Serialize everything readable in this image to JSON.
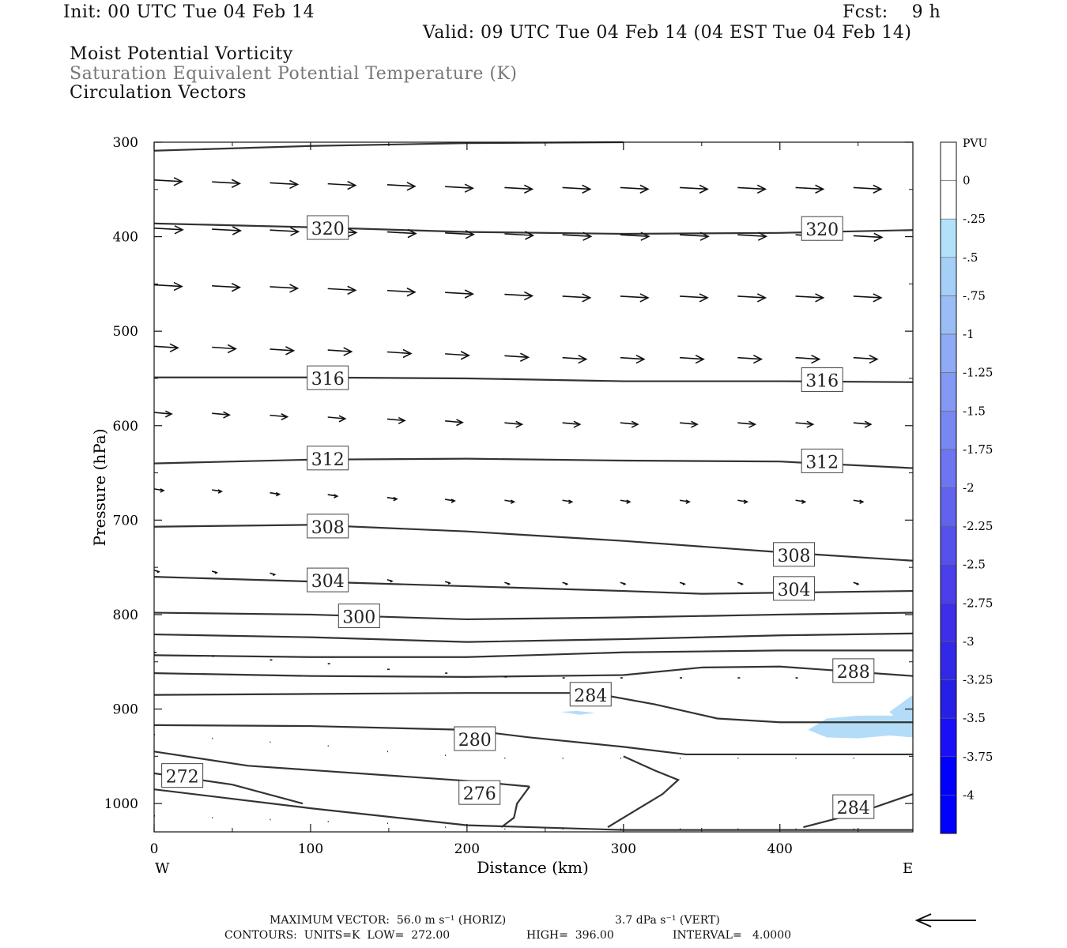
{
  "header": {
    "init": "Init: 00 UTC Tue 04 Feb 14",
    "fcst": "Fcst:    9 h",
    "valid": "Valid: 09 UTC Tue 04 Feb 14 (04 EST Tue 04 Feb 14)",
    "field1": "Moist Potential Vorticity",
    "field2": "Saturation Equivalent Potential Temperature (K)",
    "field3": "Circulation Vectors"
  },
  "footer": {
    "line1a": "MAXIMUM VECTOR:  56.0 m s⁻¹ (HORIZ)",
    "line1b": "3.7 dPa s⁻¹ (VERT)",
    "line2a": "CONTOURS:  UNITS=K  LOW=  272.00",
    "line2b": "HIGH=  396.00",
    "line2c": "INTERVAL=   4.0000"
  },
  "colors": {
    "contour": "#333333",
    "vector": "#111111",
    "pvu_fill": "#b3dcf8",
    "colorbar": [
      "#ffffff",
      "#ffffff",
      "#b3e1fa",
      "#a6cff8",
      "#9bbdf6",
      "#8fabf5",
      "#8499f3",
      "#7887f2",
      "#6d75f0",
      "#6163ee",
      "#5551ec",
      "#4a3fea",
      "#3e2de9",
      "#3228e8",
      "#2620e6",
      "#1a10f8",
      "#0000ff",
      "#0000ff"
    ]
  },
  "colorbar": {
    "title": "PVU",
    "labels": [
      "0",
      "-.25",
      "-.5",
      "-.75",
      "-1",
      "-1.25",
      "-1.5",
      "-1.75",
      "-2",
      "-2.25",
      "-2.5",
      "-2.75",
      "-3",
      "-3.25",
      "-3.5",
      "-3.75",
      "-4"
    ]
  },
  "chart_data": {
    "type": "contour",
    "xlabel": "Distance (km)",
    "ylabel": "Pressure (hPa)",
    "xlim": [
      0,
      485
    ],
    "ylim": [
      1030,
      300
    ],
    "x_ticks": [
      0,
      100,
      200,
      300,
      400
    ],
    "y_ticks": [
      300,
      400,
      500,
      600,
      700,
      800,
      900,
      1000
    ],
    "x_end_labels": {
      "left": "W",
      "right": "E"
    },
    "contours": [
      {
        "level": "320",
        "points": [
          [
            0,
            386
          ],
          [
            100,
            390
          ],
          [
            200,
            395
          ],
          [
            300,
            397
          ],
          [
            400,
            396
          ],
          [
            485,
            393
          ]
        ],
        "labels": [
          [
            111,
            392
          ],
          [
            427,
            393
          ]
        ]
      },
      {
        "level": "",
        "points": [
          [
            0,
            309
          ],
          [
            100,
            304
          ],
          [
            200,
            301
          ],
          [
            300,
            300
          ]
        ],
        "labels": []
      },
      {
        "level": "316",
        "points": [
          [
            0,
            549
          ],
          [
            100,
            549
          ],
          [
            200,
            550
          ],
          [
            300,
            553
          ],
          [
            400,
            553
          ],
          [
            485,
            554
          ]
        ],
        "labels": [
          [
            111,
            551
          ],
          [
            427,
            553
          ]
        ]
      },
      {
        "level": "312",
        "points": [
          [
            0,
            640
          ],
          [
            100,
            636
          ],
          [
            200,
            635
          ],
          [
            300,
            637
          ],
          [
            400,
            638
          ],
          [
            485,
            645
          ]
        ],
        "labels": [
          [
            111,
            636
          ],
          [
            427,
            639
          ]
        ]
      },
      {
        "level": "308",
        "points": [
          [
            0,
            707
          ],
          [
            100,
            705
          ],
          [
            200,
            712
          ],
          [
            300,
            722
          ],
          [
            400,
            734
          ],
          [
            485,
            743
          ]
        ],
        "labels": [
          [
            111,
            708
          ],
          [
            409,
            738
          ]
        ]
      },
      {
        "level": "304",
        "points": [
          [
            0,
            760
          ],
          [
            100,
            765
          ],
          [
            200,
            770
          ],
          [
            300,
            775
          ],
          [
            350,
            778
          ],
          [
            485,
            775
          ]
        ],
        "labels": [
          [
            111,
            765
          ],
          [
            409,
            774
          ]
        ]
      },
      {
        "level": "300",
        "points": [
          [
            0,
            798
          ],
          [
            100,
            800
          ],
          [
            200,
            805
          ],
          [
            300,
            803
          ],
          [
            400,
            800
          ],
          [
            485,
            798
          ]
        ],
        "labels": [
          [
            131,
            803
          ]
        ]
      },
      {
        "level": "",
        "points": [
          [
            0,
            821
          ],
          [
            100,
            824
          ],
          [
            200,
            829
          ],
          [
            300,
            826
          ],
          [
            400,
            822
          ],
          [
            485,
            820
          ]
        ],
        "labels": []
      },
      {
        "level": "",
        "points": [
          [
            0,
            843
          ],
          [
            100,
            845
          ],
          [
            200,
            845
          ],
          [
            300,
            840
          ],
          [
            400,
            838
          ],
          [
            485,
            838
          ]
        ],
        "labels": []
      },
      {
        "level": "288",
        "points": [
          [
            0,
            862
          ],
          [
            100,
            865
          ],
          [
            200,
            866
          ],
          [
            300,
            864
          ],
          [
            350,
            856
          ],
          [
            400,
            855
          ],
          [
            485,
            865
          ]
        ],
        "labels": [
          [
            447,
            861
          ]
        ]
      },
      {
        "level": "284",
        "points": [
          [
            0,
            885
          ],
          [
            100,
            884
          ],
          [
            200,
            883
          ],
          [
            280,
            883
          ],
          [
            320,
            895
          ],
          [
            360,
            910
          ],
          [
            400,
            914
          ],
          [
            485,
            914
          ]
        ],
        "labels": [
          [
            279,
            886
          ]
        ]
      },
      {
        "level": "280",
        "points": [
          [
            0,
            917
          ],
          [
            100,
            918
          ],
          [
            200,
            922
          ],
          [
            240,
            930
          ],
          [
            300,
            940
          ],
          [
            340,
            948
          ],
          [
            485,
            948
          ]
        ],
        "labels": [
          [
            205,
            933
          ]
        ]
      },
      {
        "level": "",
        "points": [
          [
            0,
            945
          ],
          [
            60,
            960
          ],
          [
            200,
            976
          ],
          [
            240,
            982
          ]
        ],
        "labels": []
      },
      {
        "level": "276",
        "points": [
          [
            240,
            982
          ],
          [
            232,
            1000
          ],
          [
            230,
            1015
          ],
          [
            222,
            1025
          ]
        ],
        "labels": [
          [
            208,
            990
          ]
        ]
      },
      {
        "level": "272",
        "points": [
          [
            0,
            968
          ],
          [
            50,
            980
          ],
          [
            95,
            1000
          ]
        ],
        "labels": [
          [
            18,
            972
          ]
        ]
      },
      {
        "level": "",
        "points": [
          [
            0,
            985
          ],
          [
            100,
            1005
          ],
          [
            200,
            1023
          ],
          [
            300,
            1028
          ],
          [
            485,
            1028
          ]
        ],
        "labels": []
      },
      {
        "level": "",
        "points": [
          [
            290,
            1025
          ],
          [
            310,
            1005
          ],
          [
            325,
            990
          ],
          [
            335,
            975
          ],
          [
            320,
            965
          ],
          [
            300,
            950
          ]
        ],
        "labels": []
      },
      {
        "level": "284",
        "points": [
          [
            415,
            1025
          ],
          [
            450,
            1010
          ],
          [
            485,
            990
          ]
        ],
        "labels": [
          [
            447,
            1005
          ]
        ]
      }
    ],
    "vectors": {
      "rows": [
        {
          "p": 340,
          "x": [
            0,
            37,
            74,
            111,
            149,
            186,
            224,
            261,
            298,
            336,
            373,
            410,
            447
          ],
          "len": 35,
          "dp": [
            0,
            2,
            3,
            4,
            5,
            7,
            8,
            8,
            8,
            8,
            8,
            8,
            8
          ]
        },
        {
          "p": 391,
          "x": [
            0,
            37,
            74,
            111,
            149,
            186,
            224,
            261,
            298,
            336,
            373,
            410,
            447
          ],
          "len": 36,
          "dp": [
            0,
            1,
            2,
            3,
            4,
            5,
            6,
            7,
            7,
            7,
            7,
            7,
            8
          ]
        },
        {
          "p": 451,
          "x": [
            0,
            37,
            74,
            111,
            149,
            186,
            224,
            261,
            298,
            336,
            373,
            410,
            447
          ],
          "len": 35,
          "dp": [
            0,
            1,
            2,
            4,
            6,
            8,
            10,
            12,
            12,
            12,
            12,
            12,
            12
          ]
        },
        {
          "p": 516,
          "x": [
            0,
            37,
            74,
            111,
            149,
            186,
            224,
            261,
            298,
            336,
            373,
            410,
            447
          ],
          "len": 30,
          "dp": [
            0,
            1,
            3,
            4,
            6,
            8,
            10,
            12,
            12,
            12,
            12,
            12,
            12
          ]
        },
        {
          "p": 586,
          "x": [
            0,
            37,
            74,
            111,
            149,
            186,
            224,
            261,
            298,
            336,
            373,
            410,
            447
          ],
          "len": 22,
          "dp": [
            0,
            1,
            3,
            5,
            7,
            9,
            11,
            11,
            11,
            11,
            11,
            11,
            11
          ]
        },
        {
          "p": 667,
          "x": [
            0,
            37,
            74,
            111,
            149,
            186,
            224,
            261,
            298,
            336,
            373,
            410,
            447
          ],
          "len": 12,
          "dp": [
            0,
            1,
            4,
            6,
            9,
            11,
            12,
            12,
            12,
            12,
            12,
            12,
            12
          ]
        },
        {
          "p": 753,
          "x": [
            0,
            37,
            74,
            111,
            149,
            186,
            224,
            261,
            298,
            336,
            373,
            410,
            447
          ],
          "len": 6,
          "dp": [
            0,
            1,
            3,
            6,
            10,
            12,
            13,
            13,
            13,
            13,
            13,
            13,
            13
          ]
        },
        {
          "p": 840,
          "x": [
            0,
            37,
            74,
            111,
            149,
            186,
            224,
            261,
            298,
            336,
            373,
            410,
            447
          ],
          "len": 3,
          "dp": [
            0,
            4,
            8,
            12,
            18,
            22,
            26,
            27,
            27,
            27,
            27,
            27,
            27
          ]
        },
        {
          "p": 927,
          "x": [
            0,
            37,
            74,
            111,
            149,
            186,
            224,
            261,
            298,
            336,
            373,
            410,
            447
          ],
          "len": 1,
          "dp": [
            0,
            4,
            8,
            12,
            18,
            22,
            25,
            25,
            25,
            25,
            25,
            25,
            25
          ]
        },
        {
          "p": 1013,
          "x": [
            0,
            37,
            74,
            111,
            149,
            186,
            224,
            261,
            298,
            336,
            373,
            410,
            447
          ],
          "len": 1,
          "dp": [
            0,
            2,
            4,
            6,
            8,
            12,
            14,
            14,
            14,
            14,
            14,
            14,
            14
          ]
        }
      ]
    },
    "pv_regions": [
      [
        [
          260,
          903
        ],
        [
          270,
          902
        ],
        [
          282,
          904
        ],
        [
          272,
          906
        ]
      ],
      [
        [
          418,
          922
        ],
        [
          430,
          910
        ],
        [
          450,
          907
        ],
        [
          470,
          907
        ],
        [
          485,
          906
        ],
        [
          485,
          930
        ],
        [
          470,
          928
        ],
        [
          450,
          931
        ],
        [
          430,
          930
        ]
      ],
      [
        [
          470,
          903
        ],
        [
          485,
          885
        ],
        [
          485,
          925
        ]
      ]
    ]
  }
}
